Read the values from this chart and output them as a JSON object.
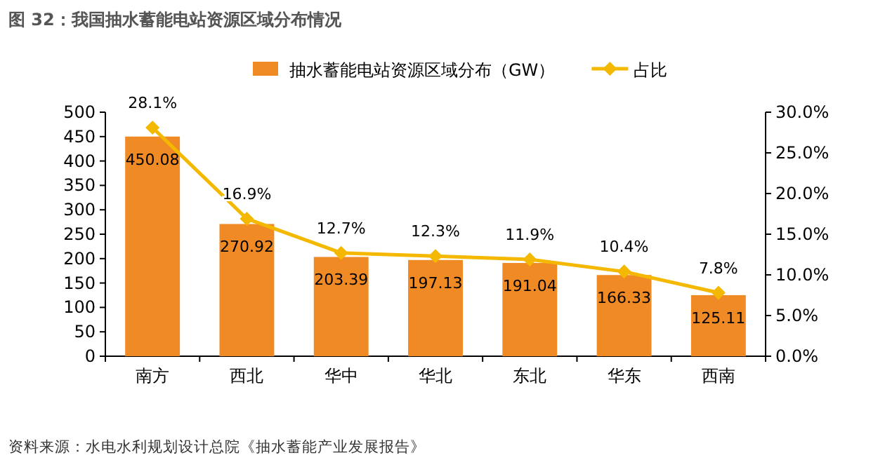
{
  "chart_data": {
    "type": "bar",
    "title": "图 32：我国抽水蓄能电站资源区域分布情况",
    "categories": [
      "南方",
      "西北",
      "华中",
      "华北",
      "东北",
      "华东",
      "西南"
    ],
    "series": [
      {
        "name": "抽水蓄能电站资源区域分布（GW）",
        "color": "#f08a24",
        "values": [
          450.08,
          270.92,
          203.39,
          197.13,
          191.04,
          166.33,
          125.11
        ],
        "value_labels": [
          "450.08",
          "270.92",
          "203.39",
          "197.13",
          "191.04",
          "166.33",
          "125.11"
        ]
      },
      {
        "name": "占比",
        "type": "line",
        "axis": "y2",
        "color": "#f5b800",
        "marker": "diamond",
        "values": [
          28.1,
          16.9,
          12.7,
          12.3,
          11.9,
          10.4,
          7.8
        ],
        "value_labels": [
          "28.1%",
          "16.9%",
          "12.7%",
          "12.3%",
          "11.9%",
          "10.4%",
          "7.8%"
        ]
      }
    ],
    "ylim": [
      0,
      500
    ],
    "yticks": [
      0,
      50,
      100,
      150,
      200,
      250,
      300,
      350,
      400,
      450,
      500
    ],
    "y2lim": [
      0,
      30
    ],
    "y2ticks": [
      {
        "value": 0,
        "label": "0.0%"
      },
      {
        "value": 5,
        "label": "5.0%"
      },
      {
        "value": 10,
        "label": "10.0%"
      },
      {
        "value": 15,
        "label": "15.0%"
      },
      {
        "value": 20,
        "label": "20.0%"
      },
      {
        "value": 25,
        "label": "25.0%"
      },
      {
        "value": 30,
        "label": "30.0%"
      }
    ],
    "legend": "top",
    "annotations": [
      "资料来源：水电水利规划设计总院《抽水蓄能产业发展报告》"
    ]
  }
}
